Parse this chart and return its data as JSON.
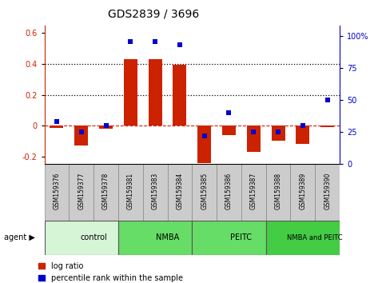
{
  "title": "GDS2839 / 3696",
  "samples": [
    "GSM159376",
    "GSM159377",
    "GSM159378",
    "GSM159381",
    "GSM159383",
    "GSM159384",
    "GSM159385",
    "GSM159386",
    "GSM159387",
    "GSM159388",
    "GSM159389",
    "GSM159390"
  ],
  "log_ratios": [
    -0.015,
    -0.13,
    -0.02,
    0.43,
    0.43,
    0.395,
    -0.245,
    -0.06,
    -0.17,
    -0.1,
    -0.12,
    -0.01
  ],
  "percentile_ranks": [
    33,
    25,
    30,
    96,
    96,
    93,
    22,
    40,
    25,
    25,
    30,
    50
  ],
  "groups": [
    {
      "label": "control",
      "start": 0,
      "end": 3,
      "color": "#d6f5d6"
    },
    {
      "label": "NMBA",
      "start": 3,
      "end": 6,
      "color": "#66dd66"
    },
    {
      "label": "PEITC",
      "start": 6,
      "end": 9,
      "color": "#66dd66"
    },
    {
      "label": "NMBA and PEITC",
      "start": 9,
      "end": 12,
      "color": "#44cc44"
    }
  ],
  "bar_color": "#cc2200",
  "dot_color": "#0000cc",
  "ylim_left": [
    -0.25,
    0.65
  ],
  "ylim_right": [
    0,
    108.33
  ],
  "yticks_left": [
    -0.2,
    0.0,
    0.2,
    0.4,
    0.6
  ],
  "yticks_right": [
    0,
    25,
    50,
    75,
    100
  ],
  "legend_items": [
    "log ratio",
    "percentile rank within the sample"
  ],
  "agent_label": "agent"
}
